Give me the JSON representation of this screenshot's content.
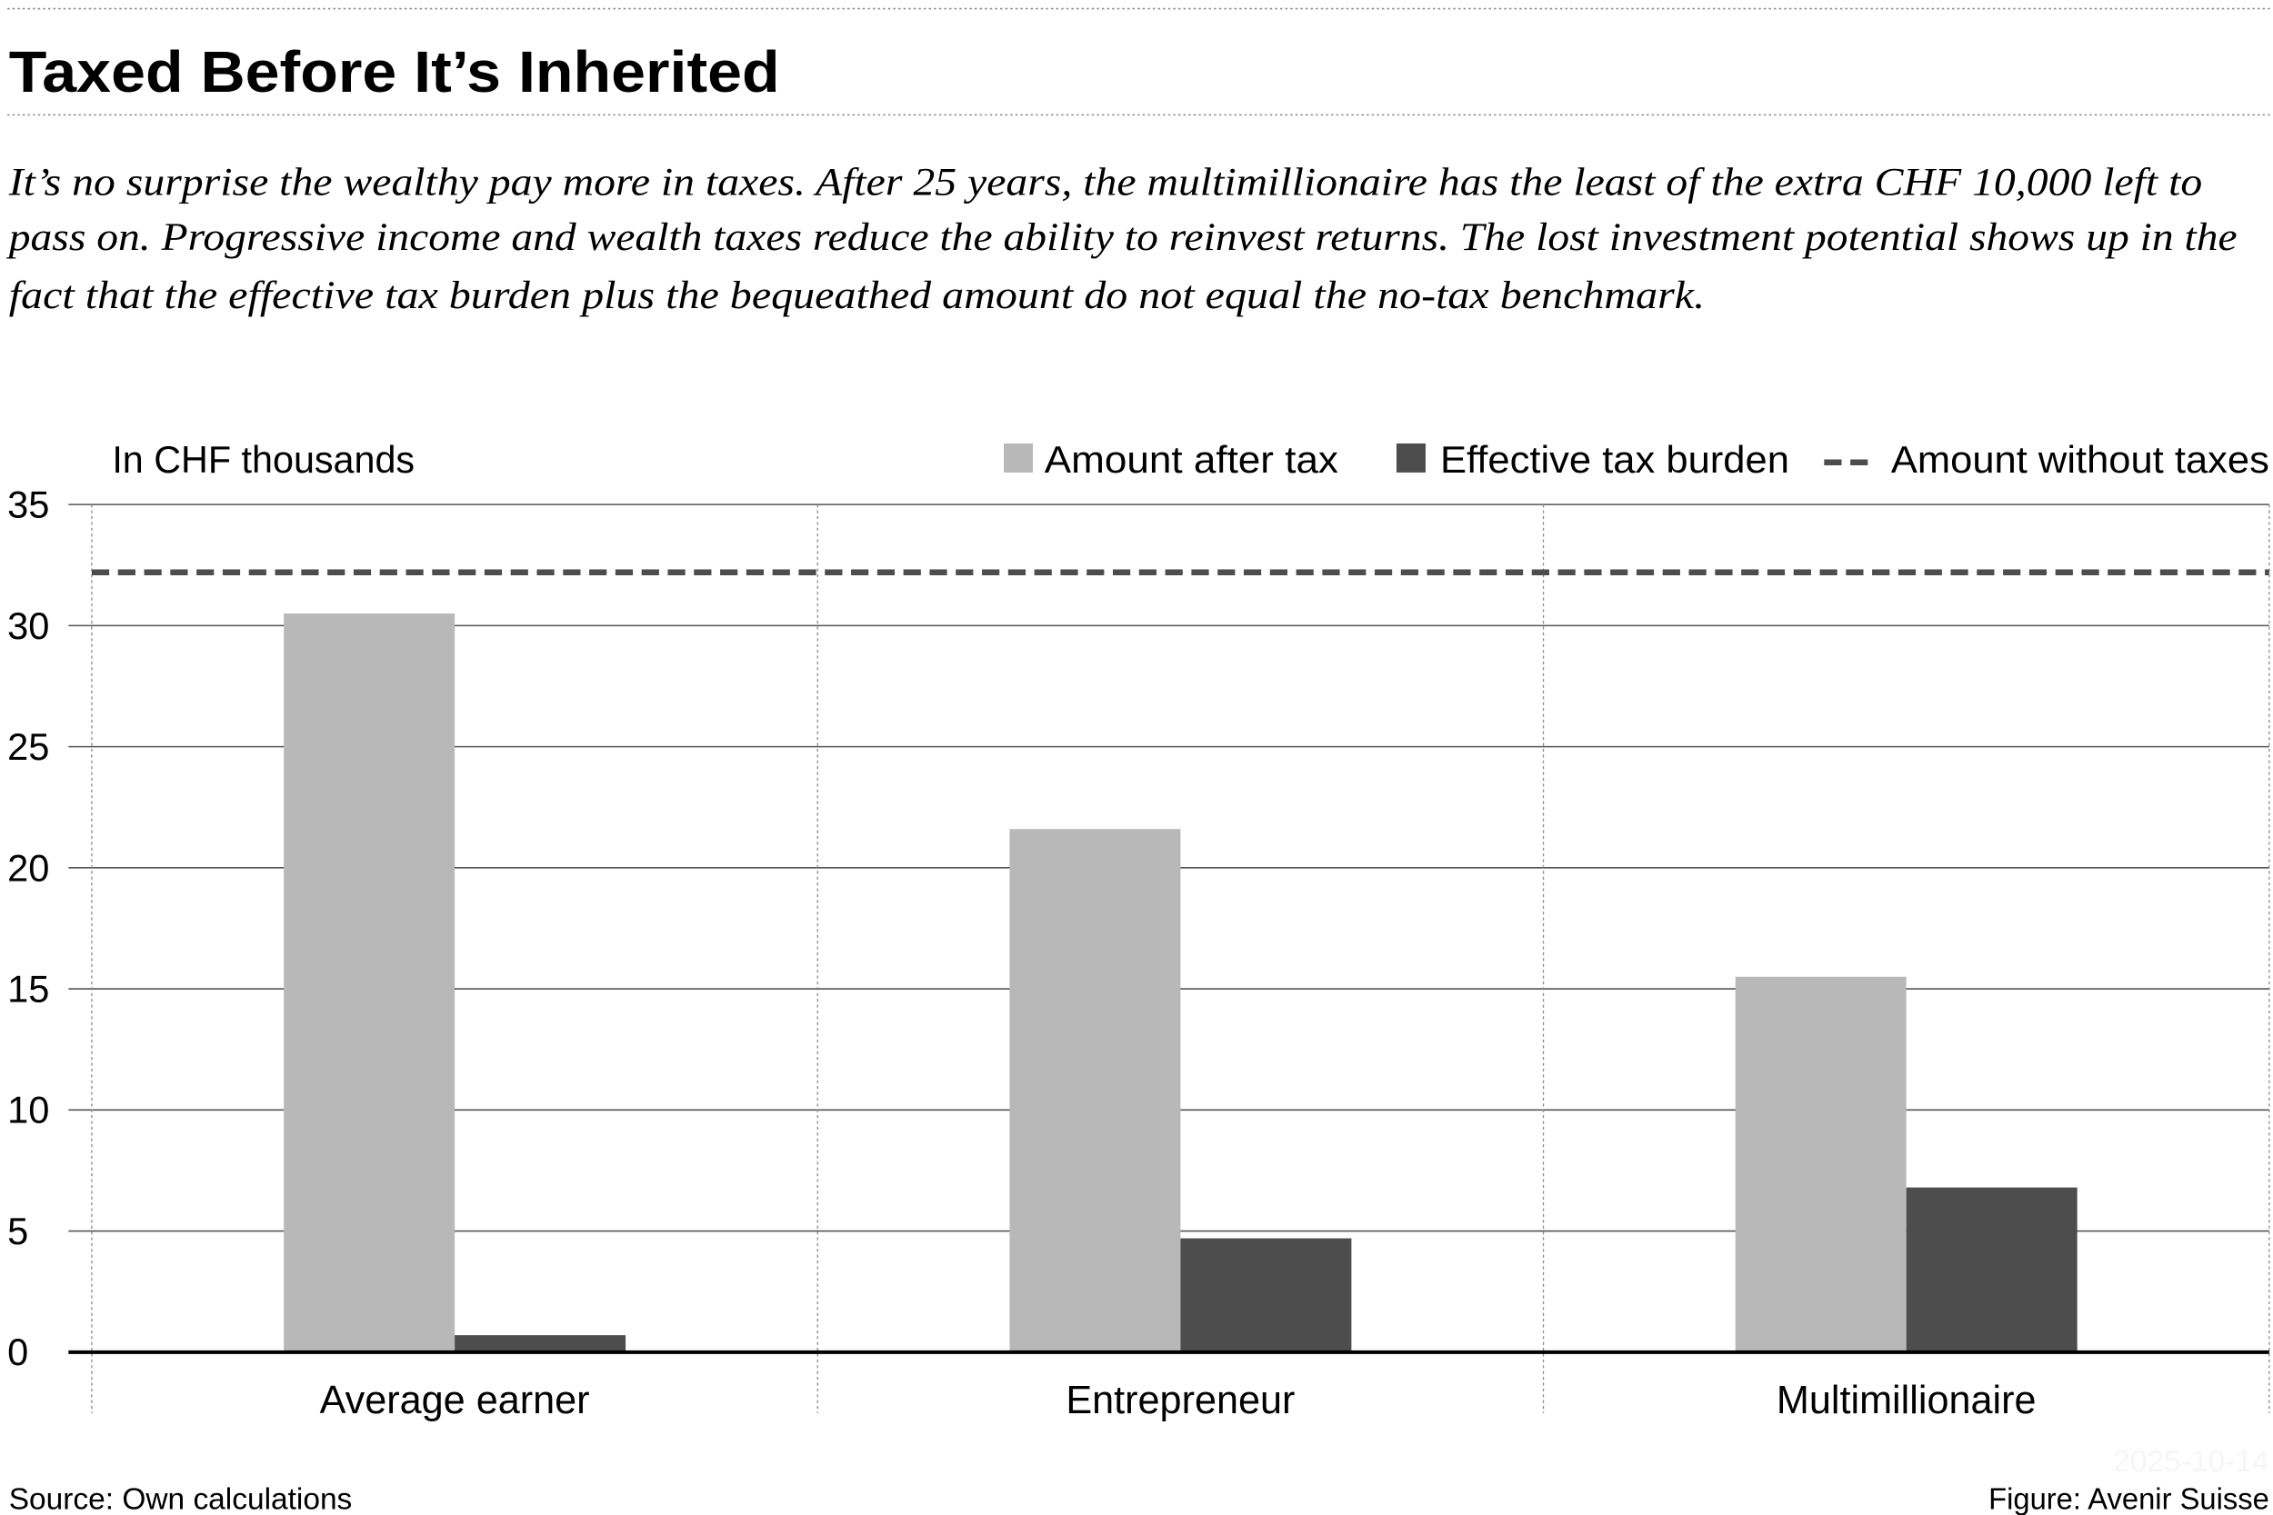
{
  "title": "Taxed Before It’s Inherited",
  "subtitle_lines": [
    "It’s no surprise the wealthy pay more in taxes. After 25 years, the multimillionaire has the least of the extra CHF 10,000 left to",
    "pass on. Progressive income and wealth taxes reduce the ability to reinvest returns. The lost investment potential shows up in the",
    "fact that the effective tax burden plus the bequeathed amount do not equal the no-tax benchmark."
  ],
  "footer": {
    "source": "Source: Own calculations",
    "credit": "Figure: Avenir Suisse",
    "watermark": "2025-10-14"
  },
  "chart_data": {
    "type": "bar",
    "ylabel": "In CHF thousands",
    "ylim": [
      0,
      35
    ],
    "yticks": [
      "0",
      "5",
      "10",
      "15",
      "20",
      "25",
      "30",
      "35"
    ],
    "grid": true,
    "legend_position": "top-right",
    "categories": [
      "Average earner",
      "Entrepreneur",
      "Multimillionaire"
    ],
    "series": [
      {
        "name": "Amount after tax",
        "color": "#b8b8b8",
        "values": [
          30.5,
          21.6,
          15.5
        ]
      },
      {
        "name": "Effective tax burden",
        "color": "#4d4d4d",
        "values": [
          0.7,
          4.7,
          6.8
        ]
      }
    ],
    "reference_line": {
      "name": "Amount without taxes",
      "value": 32.2,
      "color": "#4d4d4d",
      "style": "dashed"
    }
  }
}
